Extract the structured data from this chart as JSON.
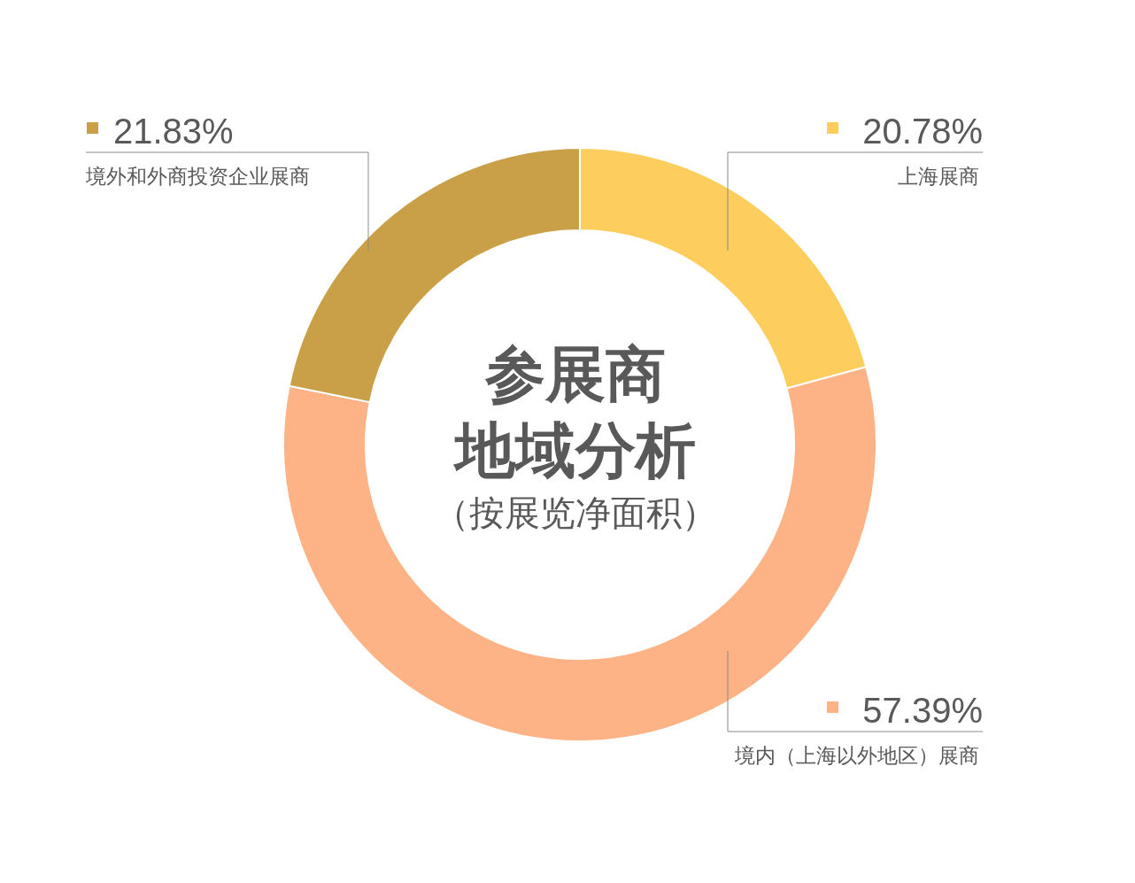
{
  "chart_data": {
    "type": "donut",
    "title": "参展商",
    "subtitle": "地域分析",
    "annotations": [
      "（按展览净面积）"
    ],
    "categories": [
      "上海展商",
      "境内（上海以外地区）展商",
      "境外和外商投资企业展商"
    ],
    "values": [
      20.78,
      57.39,
      21.83
    ],
    "value_labels": [
      "20.78%",
      "57.39%",
      "21.83%"
    ],
    "colors": [
      "#fdcd5e",
      "#fdb385",
      "#c9a047"
    ]
  }
}
